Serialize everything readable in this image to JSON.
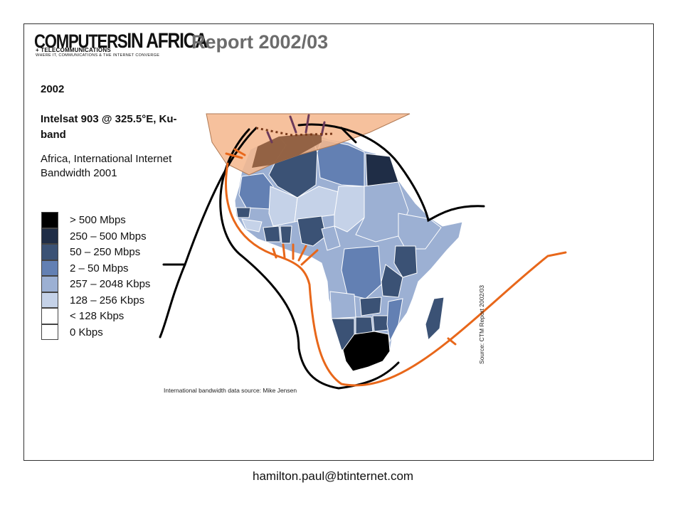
{
  "header": {
    "logo_main_a": "COMPUTERS",
    "logo_main_b": "IN AFRICA",
    "logo_sub1": "+ TELECOMMUNICATIONS",
    "logo_sub2": "WHERE IT, COMMUNICATIONS & THE INTERNET CONVERGE",
    "report_title": "Report 2002/03"
  },
  "info": {
    "year": "2002",
    "satellite": "Intelsat 903 @ 325.5°E, Ku-band",
    "subtitle": "Africa, International Internet Bandwidth 2001"
  },
  "legend": {
    "items": [
      {
        "label": "> 500 Mbps",
        "color": "#000000"
      },
      {
        "label": "250 – 500 Mbps",
        "color": "#1f2d46"
      },
      {
        "label": "50 – 250 Mbps",
        "color": "#3b5275"
      },
      {
        "label": "2 – 50 Mbps",
        "color": "#6380b3"
      },
      {
        "label": "257 – 2048 Kbps",
        "color": "#9cb0d3"
      },
      {
        "label": "128 – 256 Kbps",
        "color": "#c5d2e8"
      },
      {
        "label": "< 128 Kbps",
        "color": "#ffffff"
      },
      {
        "label": "0 Kbps",
        "color": "#ffffff"
      }
    ]
  },
  "colors": {
    "satellite_footprint": "#f5b88f",
    "footprint_overlap": "#8b5a3c",
    "cable_orange": "#e8671a",
    "cable_black": "#000000"
  },
  "credits": {
    "bandwidth_source": "International bandwidth data source: Mike Jensen",
    "map_source": "Source: CTM Report 2002/03"
  },
  "footer": {
    "email": "hamilton.paul@btinternet.com"
  }
}
